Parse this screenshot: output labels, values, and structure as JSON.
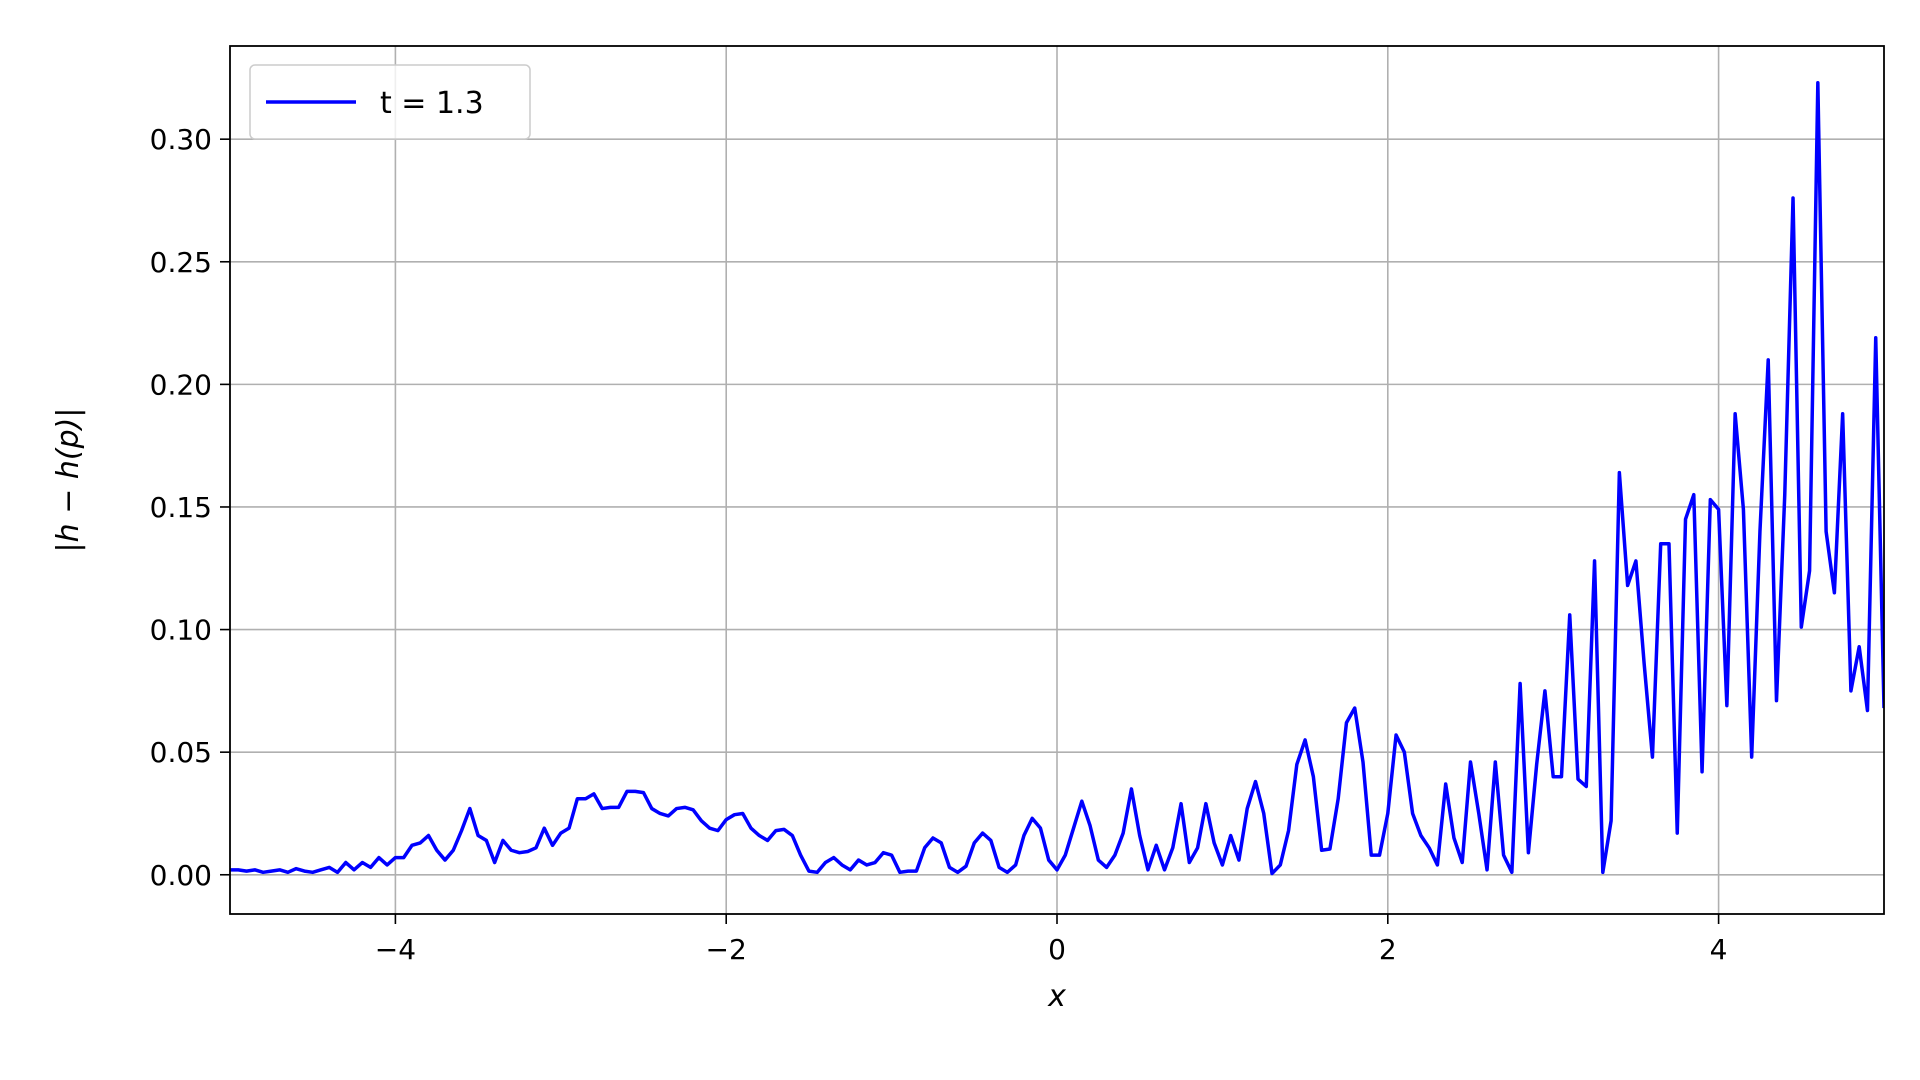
{
  "chart_data": {
    "type": "line",
    "title": "",
    "xlabel": "x",
    "ylabel": "|h − h(p)|",
    "xlim": [
      -5,
      5
    ],
    "ylim": [
      -0.016,
      0.338
    ],
    "x_ticks": [
      -4,
      -2,
      0,
      2,
      4
    ],
    "x_tick_labels": [
      "−4",
      "−2",
      "0",
      "2",
      "4"
    ],
    "y_ticks": [
      0.0,
      0.05,
      0.1,
      0.15,
      0.2,
      0.25,
      0.3
    ],
    "y_tick_labels": [
      "0.00",
      "0.05",
      "0.10",
      "0.15",
      "0.20",
      "0.25",
      "0.30"
    ],
    "grid": true,
    "legend": {
      "position": "top-left",
      "entries": [
        "t = 1.3"
      ]
    },
    "colors": {
      "series": "#0000ff",
      "grid": "#b0b0b0"
    },
    "series": [
      {
        "name": "t = 1.3",
        "x": [
          -5.0,
          -4.95,
          -4.9,
          -4.85,
          -4.8,
          -4.75,
          -4.7,
          -4.65,
          -4.6,
          -4.55,
          -4.5,
          -4.45,
          -4.4,
          -4.35,
          -4.3,
          -4.25,
          -4.2,
          -4.15,
          -4.1,
          -4.05,
          -4.0,
          -3.95,
          -3.9,
          -3.85,
          -3.8,
          -3.75,
          -3.7,
          -3.65,
          -3.6,
          -3.55,
          -3.5,
          -3.45,
          -3.4,
          -3.35,
          -3.3,
          -3.25,
          -3.2,
          -3.15,
          -3.1,
          -3.05,
          -3.0,
          -2.95,
          -2.9,
          -2.85,
          -2.8,
          -2.75,
          -2.7,
          -2.65,
          -2.6,
          -2.55,
          -2.5,
          -2.45,
          -2.4,
          -2.35,
          -2.3,
          -2.25,
          -2.2,
          -2.15,
          -2.1,
          -2.05,
          -2.0,
          -1.95,
          -1.9,
          -1.85,
          -1.8,
          -1.75,
          -1.7,
          -1.65,
          -1.6,
          -1.55,
          -1.5,
          -1.45,
          -1.4,
          -1.35,
          -1.3,
          -1.25,
          -1.2,
          -1.15,
          -1.1,
          -1.05,
          -1.0,
          -0.95,
          -0.9,
          -0.85,
          -0.8,
          -0.75,
          -0.7,
          -0.65,
          -0.6,
          -0.55,
          -0.5,
          -0.45,
          -0.4,
          -0.35,
          -0.3,
          -0.25,
          -0.2,
          -0.15,
          -0.1,
          -0.05,
          0.0,
          0.05,
          0.1,
          0.15,
          0.2,
          0.25,
          0.3,
          0.35,
          0.4,
          0.45,
          0.5,
          0.55,
          0.6,
          0.65,
          0.7,
          0.75,
          0.8,
          0.85,
          0.9,
          0.95,
          1.0,
          1.05,
          1.1,
          1.15,
          1.2,
          1.25,
          1.3,
          1.35,
          1.4,
          1.45,
          1.5,
          1.55,
          1.6,
          1.65,
          1.7,
          1.75,
          1.8,
          1.85,
          1.9,
          1.95,
          2.0,
          2.05,
          2.1,
          2.15,
          2.2,
          2.25,
          2.3,
          2.35,
          2.4,
          2.45,
          2.5,
          2.55,
          2.6,
          2.65,
          2.7,
          2.75,
          2.8,
          2.85,
          2.9,
          2.95,
          3.0,
          3.05,
          3.1,
          3.15,
          3.2,
          3.25,
          3.3,
          3.35,
          3.4,
          3.45,
          3.5,
          3.55,
          3.6,
          3.65,
          3.7,
          3.75,
          3.8,
          3.85,
          3.9,
          3.95,
          4.0,
          4.05,
          4.1,
          4.15,
          4.2,
          4.25,
          4.3,
          4.35,
          4.4,
          4.45,
          4.5,
          4.55,
          4.6,
          4.65,
          4.7,
          4.75,
          4.8,
          4.85,
          4.9,
          4.95,
          5.0
        ],
        "y": [
          0.002,
          0.002,
          0.0015,
          0.002,
          0.001,
          0.0015,
          0.002,
          0.001,
          0.0025,
          0.0015,
          0.001,
          0.002,
          0.003,
          0.001,
          0.005,
          0.002,
          0.005,
          0.003,
          0.007,
          0.004,
          0.007,
          0.007,
          0.012,
          0.013,
          0.016,
          0.01,
          0.006,
          0.01,
          0.018,
          0.027,
          0.016,
          0.014,
          0.005,
          0.014,
          0.01,
          0.009,
          0.0095,
          0.011,
          0.019,
          0.012,
          0.017,
          0.019,
          0.031,
          0.031,
          0.033,
          0.027,
          0.0275,
          0.0275,
          0.034,
          0.034,
          0.0335,
          0.027,
          0.025,
          0.024,
          0.027,
          0.0275,
          0.0265,
          0.022,
          0.019,
          0.018,
          0.0225,
          0.0245,
          0.025,
          0.019,
          0.016,
          0.014,
          0.018,
          0.0185,
          0.016,
          0.008,
          0.0015,
          0.001,
          0.005,
          0.007,
          0.004,
          0.002,
          0.006,
          0.004,
          0.005,
          0.009,
          0.008,
          0.001,
          0.0015,
          0.0015,
          0.011,
          0.015,
          0.013,
          0.003,
          0.001,
          0.0035,
          0.013,
          0.017,
          0.014,
          0.003,
          0.001,
          0.004,
          0.016,
          0.023,
          0.019,
          0.006,
          0.002,
          0.008,
          0.019,
          0.03,
          0.02,
          0.006,
          0.003,
          0.008,
          0.017,
          0.035,
          0.016,
          0.002,
          0.012,
          0.002,
          0.011,
          0.029,
          0.005,
          0.011,
          0.029,
          0.013,
          0.004,
          0.016,
          0.006,
          0.027,
          0.038,
          0.025,
          0.0005,
          0.004,
          0.018,
          0.045,
          0.055,
          0.04,
          0.01,
          0.0105,
          0.031,
          0.062,
          0.068,
          0.046,
          0.008,
          0.008,
          0.025,
          0.057,
          0.05,
          0.025,
          0.016,
          0.011,
          0.004,
          0.037,
          0.015,
          0.005,
          0.046,
          0.025,
          0.002,
          0.046,
          0.008,
          0.001,
          0.078,
          0.009,
          0.045,
          0.075,
          0.04,
          0.04,
          0.106,
          0.039,
          0.036,
          0.128,
          0.001,
          0.022,
          0.164,
          0.118,
          0.128,
          0.086,
          0.048,
          0.135,
          0.135,
          0.017,
          0.145,
          0.155,
          0.042,
          0.153,
          0.149,
          0.069,
          0.188,
          0.149,
          0.048,
          0.14,
          0.21,
          0.071,
          0.155,
          0.276,
          0.101,
          0.124,
          0.323,
          0.14,
          0.115,
          0.188,
          0.075,
          0.093,
          0.067,
          0.219,
          0.068
        ]
      }
    ]
  }
}
